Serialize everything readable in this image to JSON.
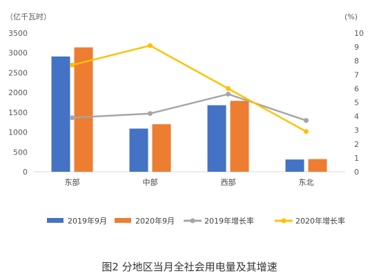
{
  "caption": "图2 分地区当月全社会用电量及其增速",
  "chart_data": {
    "type": "bar",
    "left_unit": "（亿千瓦时）",
    "right_unit": "(%)",
    "categories": [
      "东部",
      "中部",
      "西部",
      "东北"
    ],
    "ylim_left": [
      0,
      3500
    ],
    "ylim_right": [
      0,
      10
    ],
    "left_ticks": [
      0,
      500,
      1000,
      1500,
      2000,
      2500,
      3000,
      3500
    ],
    "right_ticks": [
      0,
      1,
      2,
      3,
      4,
      5,
      6,
      7,
      8,
      9,
      10
    ],
    "legend_position": "bottom",
    "grid": false,
    "series": [
      {
        "name": "2019年9月",
        "type": "bar",
        "axis": "left",
        "color": "#4472C4",
        "values": [
          2910,
          1090,
          1680,
          310
        ]
      },
      {
        "name": "2020年9月",
        "type": "bar",
        "axis": "left",
        "color": "#ED7D31",
        "values": [
          3140,
          1200,
          1790,
          320
        ]
      },
      {
        "name": "2019年增长率",
        "type": "line",
        "axis": "right",
        "color": "#A5A5A5",
        "values": [
          3.9,
          4.2,
          5.6,
          3.7
        ]
      },
      {
        "name": "2020年增长率",
        "type": "line",
        "axis": "right",
        "color": "#FFC000",
        "values": [
          7.7,
          9.1,
          6.0,
          2.9
        ]
      }
    ]
  }
}
